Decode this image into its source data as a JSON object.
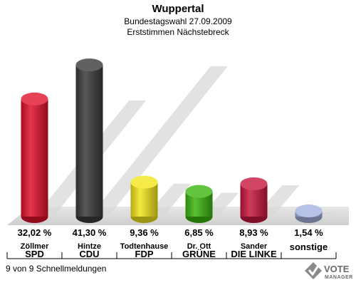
{
  "header": {
    "title": "Wuppertal",
    "subtitle1": "Bundestagswahl 27.09.2009",
    "subtitle2": "Erststimmen Nächstebreck"
  },
  "footer": {
    "status": "9 von 9 Schnellmeldungen"
  },
  "logo": {
    "line1": "VOTE",
    "line2": "MANAGER"
  },
  "chart_data": {
    "type": "bar",
    "title": "Wuppertal",
    "ylim": [
      0,
      45
    ],
    "categories": [
      "SPD",
      "CDU",
      "FDP",
      "GRÜNE",
      "DIE LINKE",
      "sonstige"
    ],
    "candidates": [
      "Zöllmer",
      "Hintze",
      "Todtenhause",
      "Dr. Ott",
      "Sander",
      ""
    ],
    "values": [
      32.02,
      41.3,
      9.36,
      6.85,
      8.93,
      1.54
    ],
    "value_labels": [
      "32,02 %",
      "41,30 %",
      "9,36 %",
      "6,85 %",
      "8,93 %",
      "1,54 %"
    ],
    "colors": [
      "#e0112b",
      "#3a3a3a",
      "#f2e51a",
      "#3cb50f",
      "#c8173f",
      "#a4b4e0"
    ],
    "legend": "none",
    "grid": false
  }
}
